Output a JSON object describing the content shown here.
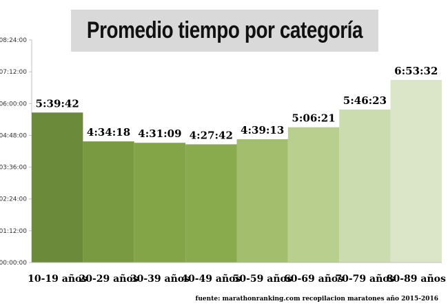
{
  "chart_data": {
    "type": "bar",
    "title": "Promedio tiempo por categoría",
    "categories": [
      "10-19 años",
      "20-29 años",
      "30-39 años",
      "40-49 años",
      "50-59 años",
      "60-69 años",
      "70-79 años",
      "80-89 años"
    ],
    "values": [
      "5:39:42",
      "4:34:18",
      "4:31:09",
      "4:27:42",
      "4:39:13",
      "5:06:21",
      "5:46:23",
      "6:53:32"
    ],
    "value_labels": [
      "5:39:42",
      "4:34:18",
      "4:31:09",
      "4:27:42",
      "4:39:13",
      "5:06:21",
      "5:46:23",
      "6:53:32"
    ],
    "yticks": [
      "00:00:00",
      "01:12:00",
      "02:24:00",
      "03:36:00",
      "04:48:00",
      "06:00:00",
      "07:12:00",
      "08:24:00"
    ],
    "ylim": [
      "00:00:00",
      "08:24:00"
    ],
    "xlabel": "",
    "ylabel": "",
    "grid": false,
    "legend": "none",
    "bar_colors": [
      "#6b8a3a",
      "#7a9a41",
      "#83a548",
      "#8aaa4e",
      "#a3bf6d",
      "#b8cf8d",
      "#cbdcaf",
      "#dbe6c9"
    ],
    "source": "fuente: marathonranking.com recopilacion maratones año 2015-2016"
  }
}
